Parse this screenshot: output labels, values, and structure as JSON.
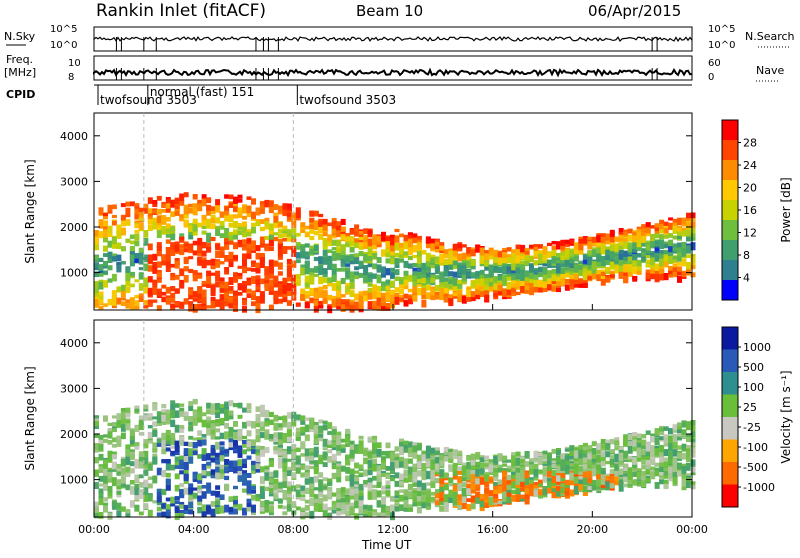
{
  "header": {
    "title": "Rankin Inlet (fitACF)",
    "beam": "Beam 10",
    "date": "06/Apr/2015"
  },
  "status_panels": {
    "left_top": "N.Sky",
    "left_mid_1": "Freq.",
    "left_mid_2": "[MHz]",
    "left_bottom": "CPID",
    "right_top": "N.Search",
    "right_mid": "Nave",
    "nsky_ticks": [
      "10^5",
      "10^0"
    ],
    "nsearch_ticks": [
      "10^5",
      "10^0"
    ],
    "freq_ticks": [
      "10",
      "8"
    ],
    "nave_ticks": [
      "60",
      "0"
    ],
    "cpid_labels": [
      {
        "text": "twofsound 3503",
        "start_hour": 0.0
      },
      {
        "text": "normal (fast) 151",
        "start_hour": 2.0
      },
      {
        "text": "twofsound 3503",
        "start_hour": 8.0
      }
    ]
  },
  "chart_data": [
    {
      "type": "heatmap",
      "name": "power",
      "ylabel": "Slant Range [km]",
      "xlabel": "",
      "x_range_hours": [
        0,
        24
      ],
      "ylim": [
        180,
        4500
      ],
      "yticks": [
        "1000",
        "2000",
        "3000",
        "4000"
      ],
      "xticks": [
        "00:00",
        "04:00",
        "08:00",
        "12:00",
        "16:00",
        "20:00",
        "00:00"
      ],
      "colorbar": {
        "label": "Power [dB]",
        "ticks": [
          "28",
          "24",
          "20",
          "16",
          "12",
          "8",
          "4"
        ],
        "colors": [
          "#ff0000",
          "#ff4500",
          "#ff8c00",
          "#ffc800",
          "#c8d200",
          "#6fbf3f",
          "#3f9f6f",
          "#2f7f8f",
          "#0000ff"
        ]
      },
      "mode_change_hours": [
        2.0,
        8.0
      ]
    },
    {
      "type": "heatmap",
      "name": "velocity",
      "ylabel": "Slant Range [km]",
      "xlabel": "Time UT",
      "x_range_hours": [
        0,
        24
      ],
      "ylim": [
        180,
        4500
      ],
      "yticks": [
        "1000",
        "2000",
        "3000",
        "4000"
      ],
      "xticks": [
        "00:00",
        "04:00",
        "08:00",
        "12:00",
        "16:00",
        "20:00",
        "00:00"
      ],
      "colorbar": {
        "label": "Velocity [m s⁻¹]",
        "ticks": [
          "1000",
          "500",
          "100",
          "25",
          "-25",
          "-100",
          "-500",
          "-1000"
        ],
        "colors": [
          "#0a1aa0",
          "#2a5ab8",
          "#2f8f8f",
          "#6abf3a",
          "#c8c8c0",
          "#ffa500",
          "#ff6a00",
          "#ff0000"
        ]
      },
      "mode_change_hours": [
        2.0,
        8.0
      ]
    }
  ]
}
